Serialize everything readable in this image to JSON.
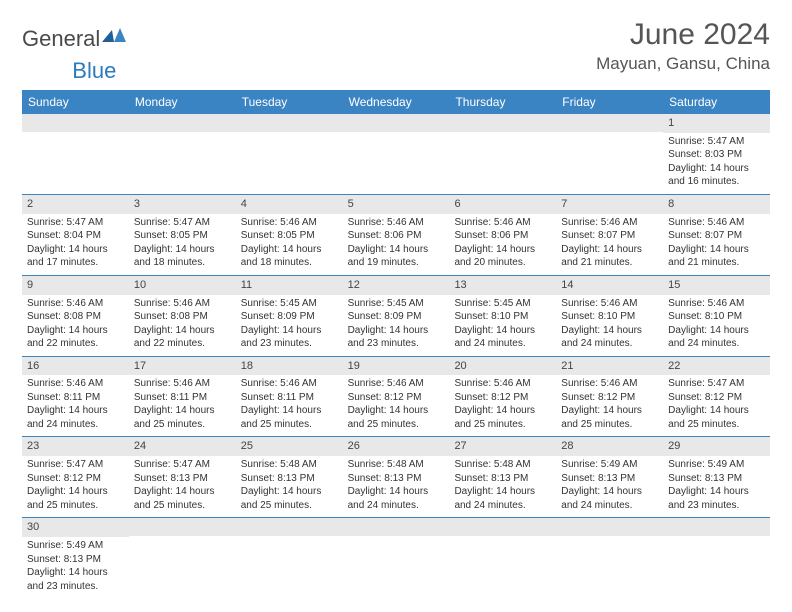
{
  "logo": {
    "text1": "General",
    "text2": "Blue"
  },
  "title": "June 2024",
  "location": "Mayuan, Gansu, China",
  "header_bg": "#3b84c4",
  "divider_color": "#3b84c4",
  "daynum_bg": "#e8e8e8",
  "weekdays": [
    "Sunday",
    "Monday",
    "Tuesday",
    "Wednesday",
    "Thursday",
    "Friday",
    "Saturday"
  ],
  "weeks": [
    [
      {
        "n": "",
        "sr": "",
        "ss": "",
        "dl": ""
      },
      {
        "n": "",
        "sr": "",
        "ss": "",
        "dl": ""
      },
      {
        "n": "",
        "sr": "",
        "ss": "",
        "dl": ""
      },
      {
        "n": "",
        "sr": "",
        "ss": "",
        "dl": ""
      },
      {
        "n": "",
        "sr": "",
        "ss": "",
        "dl": ""
      },
      {
        "n": "",
        "sr": "",
        "ss": "",
        "dl": ""
      },
      {
        "n": "1",
        "sr": "Sunrise: 5:47 AM",
        "ss": "Sunset: 8:03 PM",
        "dl": "Daylight: 14 hours and 16 minutes."
      }
    ],
    [
      {
        "n": "2",
        "sr": "Sunrise: 5:47 AM",
        "ss": "Sunset: 8:04 PM",
        "dl": "Daylight: 14 hours and 17 minutes."
      },
      {
        "n": "3",
        "sr": "Sunrise: 5:47 AM",
        "ss": "Sunset: 8:05 PM",
        "dl": "Daylight: 14 hours and 18 minutes."
      },
      {
        "n": "4",
        "sr": "Sunrise: 5:46 AM",
        "ss": "Sunset: 8:05 PM",
        "dl": "Daylight: 14 hours and 18 minutes."
      },
      {
        "n": "5",
        "sr": "Sunrise: 5:46 AM",
        "ss": "Sunset: 8:06 PM",
        "dl": "Daylight: 14 hours and 19 minutes."
      },
      {
        "n": "6",
        "sr": "Sunrise: 5:46 AM",
        "ss": "Sunset: 8:06 PM",
        "dl": "Daylight: 14 hours and 20 minutes."
      },
      {
        "n": "7",
        "sr": "Sunrise: 5:46 AM",
        "ss": "Sunset: 8:07 PM",
        "dl": "Daylight: 14 hours and 21 minutes."
      },
      {
        "n": "8",
        "sr": "Sunrise: 5:46 AM",
        "ss": "Sunset: 8:07 PM",
        "dl": "Daylight: 14 hours and 21 minutes."
      }
    ],
    [
      {
        "n": "9",
        "sr": "Sunrise: 5:46 AM",
        "ss": "Sunset: 8:08 PM",
        "dl": "Daylight: 14 hours and 22 minutes."
      },
      {
        "n": "10",
        "sr": "Sunrise: 5:46 AM",
        "ss": "Sunset: 8:08 PM",
        "dl": "Daylight: 14 hours and 22 minutes."
      },
      {
        "n": "11",
        "sr": "Sunrise: 5:45 AM",
        "ss": "Sunset: 8:09 PM",
        "dl": "Daylight: 14 hours and 23 minutes."
      },
      {
        "n": "12",
        "sr": "Sunrise: 5:45 AM",
        "ss": "Sunset: 8:09 PM",
        "dl": "Daylight: 14 hours and 23 minutes."
      },
      {
        "n": "13",
        "sr": "Sunrise: 5:45 AM",
        "ss": "Sunset: 8:10 PM",
        "dl": "Daylight: 14 hours and 24 minutes."
      },
      {
        "n": "14",
        "sr": "Sunrise: 5:46 AM",
        "ss": "Sunset: 8:10 PM",
        "dl": "Daylight: 14 hours and 24 minutes."
      },
      {
        "n": "15",
        "sr": "Sunrise: 5:46 AM",
        "ss": "Sunset: 8:10 PM",
        "dl": "Daylight: 14 hours and 24 minutes."
      }
    ],
    [
      {
        "n": "16",
        "sr": "Sunrise: 5:46 AM",
        "ss": "Sunset: 8:11 PM",
        "dl": "Daylight: 14 hours and 24 minutes."
      },
      {
        "n": "17",
        "sr": "Sunrise: 5:46 AM",
        "ss": "Sunset: 8:11 PM",
        "dl": "Daylight: 14 hours and 25 minutes."
      },
      {
        "n": "18",
        "sr": "Sunrise: 5:46 AM",
        "ss": "Sunset: 8:11 PM",
        "dl": "Daylight: 14 hours and 25 minutes."
      },
      {
        "n": "19",
        "sr": "Sunrise: 5:46 AM",
        "ss": "Sunset: 8:12 PM",
        "dl": "Daylight: 14 hours and 25 minutes."
      },
      {
        "n": "20",
        "sr": "Sunrise: 5:46 AM",
        "ss": "Sunset: 8:12 PM",
        "dl": "Daylight: 14 hours and 25 minutes."
      },
      {
        "n": "21",
        "sr": "Sunrise: 5:46 AM",
        "ss": "Sunset: 8:12 PM",
        "dl": "Daylight: 14 hours and 25 minutes."
      },
      {
        "n": "22",
        "sr": "Sunrise: 5:47 AM",
        "ss": "Sunset: 8:12 PM",
        "dl": "Daylight: 14 hours and 25 minutes."
      }
    ],
    [
      {
        "n": "23",
        "sr": "Sunrise: 5:47 AM",
        "ss": "Sunset: 8:12 PM",
        "dl": "Daylight: 14 hours and 25 minutes."
      },
      {
        "n": "24",
        "sr": "Sunrise: 5:47 AM",
        "ss": "Sunset: 8:13 PM",
        "dl": "Daylight: 14 hours and 25 minutes."
      },
      {
        "n": "25",
        "sr": "Sunrise: 5:48 AM",
        "ss": "Sunset: 8:13 PM",
        "dl": "Daylight: 14 hours and 25 minutes."
      },
      {
        "n": "26",
        "sr": "Sunrise: 5:48 AM",
        "ss": "Sunset: 8:13 PM",
        "dl": "Daylight: 14 hours and 24 minutes."
      },
      {
        "n": "27",
        "sr": "Sunrise: 5:48 AM",
        "ss": "Sunset: 8:13 PM",
        "dl": "Daylight: 14 hours and 24 minutes."
      },
      {
        "n": "28",
        "sr": "Sunrise: 5:49 AM",
        "ss": "Sunset: 8:13 PM",
        "dl": "Daylight: 14 hours and 24 minutes."
      },
      {
        "n": "29",
        "sr": "Sunrise: 5:49 AM",
        "ss": "Sunset: 8:13 PM",
        "dl": "Daylight: 14 hours and 23 minutes."
      }
    ],
    [
      {
        "n": "30",
        "sr": "Sunrise: 5:49 AM",
        "ss": "Sunset: 8:13 PM",
        "dl": "Daylight: 14 hours and 23 minutes."
      },
      {
        "n": "",
        "sr": "",
        "ss": "",
        "dl": ""
      },
      {
        "n": "",
        "sr": "",
        "ss": "",
        "dl": ""
      },
      {
        "n": "",
        "sr": "",
        "ss": "",
        "dl": ""
      },
      {
        "n": "",
        "sr": "",
        "ss": "",
        "dl": ""
      },
      {
        "n": "",
        "sr": "",
        "ss": "",
        "dl": ""
      },
      {
        "n": "",
        "sr": "",
        "ss": "",
        "dl": ""
      }
    ]
  ]
}
